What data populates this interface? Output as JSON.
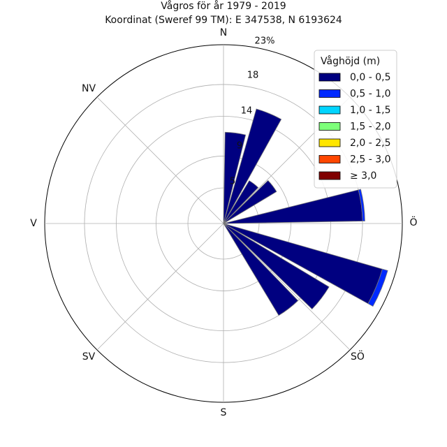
{
  "chart_data": {
    "type": "windrose",
    "title": "Vågros för år 1979 - 2019",
    "subtitle": "Koordinat (Sweref 99 TM): E 347538, N 6193624",
    "directions": [
      "N",
      "NV",
      "V",
      "SV",
      "S",
      "SÖ",
      "Ö"
    ],
    "radial_ticks": [
      "5",
      "9",
      "14",
      "18",
      "23%"
    ],
    "radial_tick_values": [
      5,
      9,
      14,
      18,
      23
    ],
    "rmax": 23,
    "grid": true,
    "legend": {
      "title": "Våghöjd (m)",
      "position": "top-right",
      "entries": [
        {
          "label": "0,0 - 0,5",
          "color": "#000080"
        },
        {
          "label": "0,5 - 1,0",
          "color": "#0029ff"
        },
        {
          "label": "1,0 - 1,5",
          "color": "#00d5ff"
        },
        {
          "label": "1,5 - 2,0",
          "color": "#7dff7a"
        },
        {
          "label": "2,0 - 2,5",
          "color": "#ffe600"
        },
        {
          "label": "2,5 - 3,0",
          "color": "#ff4700"
        },
        {
          "label": "≥ 3,0",
          "color": "#800000"
        }
      ]
    },
    "sectors": [
      {
        "direction_deg": 7.5,
        "values": [
          12.0,
          0,
          0,
          0,
          0,
          0,
          0
        ]
      },
      {
        "direction_deg": 22.5,
        "values": [
          15.5,
          0,
          0,
          0,
          0,
          0,
          0
        ]
      },
      {
        "direction_deg": 37.5,
        "values": [
          6.8,
          0,
          0,
          0,
          0,
          0,
          0
        ]
      },
      {
        "direction_deg": 52.5,
        "values": [
          8.3,
          0,
          0,
          0,
          0,
          0,
          0
        ]
      },
      {
        "direction_deg": 82.5,
        "values": [
          18.0,
          0.3,
          0,
          0,
          0,
          0,
          0
        ]
      },
      {
        "direction_deg": 112.5,
        "values": [
          21.3,
          0.7,
          0,
          0,
          0,
          0,
          0
        ]
      },
      {
        "direction_deg": 127.5,
        "values": [
          16.0,
          0,
          0,
          0,
          0,
          0,
          0
        ]
      },
      {
        "direction_deg": 142.5,
        "values": [
          14.0,
          0,
          0,
          0,
          0,
          0,
          0
        ]
      }
    ]
  }
}
